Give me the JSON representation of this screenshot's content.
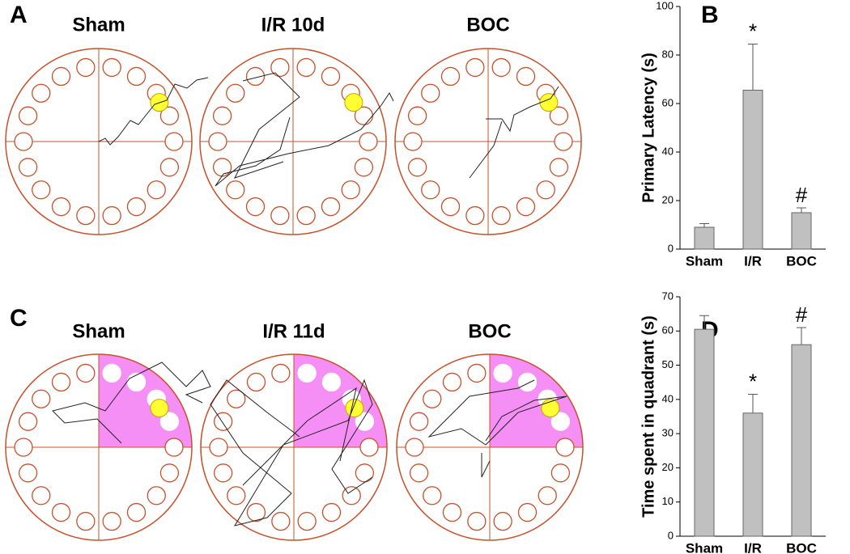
{
  "panel_labels": [
    "A",
    "B",
    "C",
    "D"
  ],
  "arenas": [
    {
      "title": "Sham"
    },
    {
      "title": "I/R 10d"
    },
    {
      "title": "BOC"
    },
    {
      "title": "Sham"
    },
    {
      "title": "I/R 11d"
    },
    {
      "title": "BOC"
    }
  ],
  "chart_data": [
    {
      "type": "bar",
      "y_label": "Primary Latency (s)",
      "categories": [
        "Sham",
        "I/R",
        "BOC"
      ],
      "values": [
        9,
        65.5,
        15
      ],
      "errors": [
        1.5,
        19,
        2
      ],
      "annotations": [
        null,
        "*",
        "#"
      ],
      "color": "#c0c0c0",
      "ylim": [
        0,
        100
      ],
      "yticks": [
        0,
        20,
        40,
        60,
        80,
        100
      ]
    },
    {
      "type": "bar",
      "y_label": "Time spent in quadrant (s)",
      "categories": [
        "Sham",
        "I/R",
        "BOC"
      ],
      "values": [
        60.5,
        36,
        56
      ],
      "errors": [
        4,
        5.5,
        5
      ],
      "annotations": [
        null,
        "*",
        "#"
      ],
      "color": "#c0c0c0",
      "ylim": [
        0,
        70
      ],
      "yticks": [
        0,
        10,
        20,
        30,
        40,
        50,
        60,
        70
      ]
    }
  ]
}
